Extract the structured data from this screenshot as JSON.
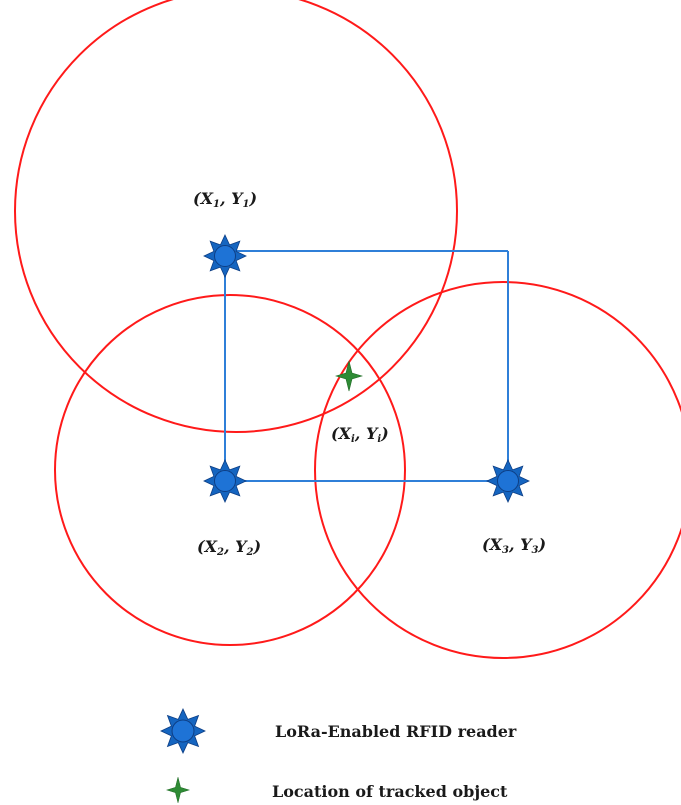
{
  "colors": {
    "range_circle": "#ff1a1a",
    "connector_line": "#2f7fd8",
    "reader_icon": "#1565c0",
    "tracked_object_icon": "#2e8b35"
  },
  "readers": [
    {
      "sub": "1",
      "icon": "reader-star-icon"
    },
    {
      "sub": "2",
      "icon": "reader-star-icon"
    },
    {
      "sub": "3",
      "icon": "reader-star-icon"
    }
  ],
  "tracked_object": {
    "sub": "i",
    "icon": "tracked-object-star-icon"
  },
  "legend": {
    "reader_label": "LoRa-Enabled RFID reader",
    "object_label": "Location of tracked object"
  }
}
